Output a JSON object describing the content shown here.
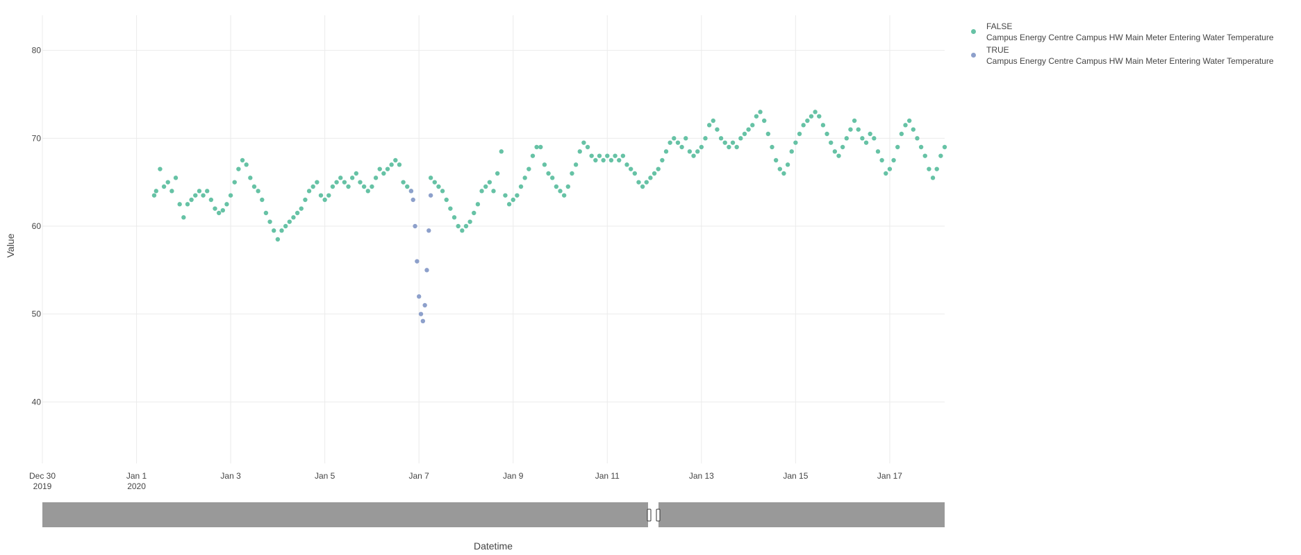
{
  "colors": {
    "false_series": "#66c2a5",
    "true_series": "#8da0cb",
    "grid": "#ebebeb",
    "rangeslider": "#999999",
    "text": "#444444"
  },
  "legend": {
    "items": [
      {
        "line1": "FALSE",
        "line2": "Campus Energy Centre Campus HW Main Meter Entering Water Temperature",
        "color": "#66c2a5"
      },
      {
        "line1": "TRUE",
        "line2": "Campus Energy Centre Campus HW Main Meter Entering Water Temperature",
        "color": "#8da0cb"
      }
    ]
  },
  "chart_data": {
    "type": "scatter",
    "xlabel": "Datetime",
    "ylabel": "Value",
    "xlim": [
      "2019-12-30",
      "2020-01-18 04:00"
    ],
    "ylim": [
      33,
      84
    ],
    "y_ticks": [
      40,
      50,
      60,
      70,
      80
    ],
    "x_ticks": [
      {
        "date": "2019-12-30",
        "label1": "Dec 30",
        "label2": "2019"
      },
      {
        "date": "2020-01-01",
        "label1": "Jan 1",
        "label2": "2020"
      },
      {
        "date": "2020-01-03",
        "label1": "Jan 3",
        "label2": ""
      },
      {
        "date": "2020-01-05",
        "label1": "Jan 5",
        "label2": ""
      },
      {
        "date": "2020-01-07",
        "label1": "Jan 7",
        "label2": ""
      },
      {
        "date": "2020-01-09",
        "label1": "Jan 9",
        "label2": ""
      },
      {
        "date": "2020-01-11",
        "label1": "Jan 11",
        "label2": ""
      },
      {
        "date": "2020-01-13",
        "label1": "Jan 13",
        "label2": ""
      },
      {
        "date": "2020-01-15",
        "label1": "Jan 15",
        "label2": ""
      },
      {
        "date": "2020-01-17",
        "label1": "Jan 17",
        "label2": ""
      }
    ],
    "grid": true,
    "legend_position": "top-right",
    "rangeslider": true,
    "series": [
      {
        "name": "FALSE\nCampus Energy Centre Campus HW Main Meter Entering Water Temperature",
        "color": "#66c2a5",
        "points": [
          [
            "2020-01-01 09:00",
            63.5
          ],
          [
            "2020-01-01 10:00",
            64.0
          ],
          [
            "2020-01-01 12:00",
            66.5
          ],
          [
            "2020-01-01 14:00",
            64.5
          ],
          [
            "2020-01-01 16:00",
            65.0
          ],
          [
            "2020-01-01 18:00",
            64.0
          ],
          [
            "2020-01-01 20:00",
            65.5
          ],
          [
            "2020-01-01 22:00",
            62.5
          ],
          [
            "2020-01-02 00:00",
            61.0
          ],
          [
            "2020-01-02 02:00",
            62.5
          ],
          [
            "2020-01-02 04:00",
            63.0
          ],
          [
            "2020-01-02 06:00",
            63.5
          ],
          [
            "2020-01-02 08:00",
            64.0
          ],
          [
            "2020-01-02 10:00",
            63.5
          ],
          [
            "2020-01-02 12:00",
            64.0
          ],
          [
            "2020-01-02 14:00",
            63.0
          ],
          [
            "2020-01-02 16:00",
            62.0
          ],
          [
            "2020-01-02 18:00",
            61.5
          ],
          [
            "2020-01-02 20:00",
            61.8
          ],
          [
            "2020-01-02 22:00",
            62.5
          ],
          [
            "2020-01-03 00:00",
            63.5
          ],
          [
            "2020-01-03 02:00",
            65.0
          ],
          [
            "2020-01-03 04:00",
            66.5
          ],
          [
            "2020-01-03 06:00",
            67.5
          ],
          [
            "2020-01-03 08:00",
            67.0
          ],
          [
            "2020-01-03 10:00",
            65.5
          ],
          [
            "2020-01-03 12:00",
            64.5
          ],
          [
            "2020-01-03 14:00",
            64.0
          ],
          [
            "2020-01-03 16:00",
            63.0
          ],
          [
            "2020-01-03 18:00",
            61.5
          ],
          [
            "2020-01-03 20:00",
            60.5
          ],
          [
            "2020-01-03 22:00",
            59.5
          ],
          [
            "2020-01-04 00:00",
            58.5
          ],
          [
            "2020-01-04 02:00",
            59.5
          ],
          [
            "2020-01-04 04:00",
            60.0
          ],
          [
            "2020-01-04 06:00",
            60.5
          ],
          [
            "2020-01-04 08:00",
            61.0
          ],
          [
            "2020-01-04 10:00",
            61.5
          ],
          [
            "2020-01-04 12:00",
            62.0
          ],
          [
            "2020-01-04 14:00",
            63.0
          ],
          [
            "2020-01-04 16:00",
            64.0
          ],
          [
            "2020-01-04 18:00",
            64.5
          ],
          [
            "2020-01-04 20:00",
            65.0
          ],
          [
            "2020-01-04 22:00",
            63.5
          ],
          [
            "2020-01-05 00:00",
            63.0
          ],
          [
            "2020-01-05 02:00",
            63.5
          ],
          [
            "2020-01-05 04:00",
            64.5
          ],
          [
            "2020-01-05 06:00",
            65.0
          ],
          [
            "2020-01-05 08:00",
            65.5
          ],
          [
            "2020-01-05 10:00",
            65.0
          ],
          [
            "2020-01-05 12:00",
            64.5
          ],
          [
            "2020-01-05 14:00",
            65.5
          ],
          [
            "2020-01-05 16:00",
            66.0
          ],
          [
            "2020-01-05 18:00",
            65.0
          ],
          [
            "2020-01-05 20:00",
            64.5
          ],
          [
            "2020-01-05 22:00",
            64.0
          ],
          [
            "2020-01-06 00:00",
            64.5
          ],
          [
            "2020-01-06 02:00",
            65.5
          ],
          [
            "2020-01-06 04:00",
            66.5
          ],
          [
            "2020-01-06 06:00",
            66.0
          ],
          [
            "2020-01-06 08:00",
            66.5
          ],
          [
            "2020-01-06 10:00",
            67.0
          ],
          [
            "2020-01-06 12:00",
            67.5
          ],
          [
            "2020-01-06 14:00",
            67.0
          ],
          [
            "2020-01-06 16:00",
            65.0
          ],
          [
            "2020-01-06 18:00",
            64.5
          ],
          [
            "2020-01-06 20:00",
            64.0
          ],
          [
            "2020-01-07 06:00",
            65.5
          ],
          [
            "2020-01-07 08:00",
            65.0
          ],
          [
            "2020-01-07 10:00",
            64.5
          ],
          [
            "2020-01-07 12:00",
            64.0
          ],
          [
            "2020-01-07 14:00",
            63.0
          ],
          [
            "2020-01-07 16:00",
            62.0
          ],
          [
            "2020-01-07 18:00",
            61.0
          ],
          [
            "2020-01-07 20:00",
            60.0
          ],
          [
            "2020-01-07 22:00",
            59.5
          ],
          [
            "2020-01-08 00:00",
            60.0
          ],
          [
            "2020-01-08 02:00",
            60.5
          ],
          [
            "2020-01-08 04:00",
            61.5
          ],
          [
            "2020-01-08 06:00",
            62.5
          ],
          [
            "2020-01-08 08:00",
            64.0
          ],
          [
            "2020-01-08 10:00",
            64.5
          ],
          [
            "2020-01-08 12:00",
            65.0
          ],
          [
            "2020-01-08 14:00",
            64.0
          ],
          [
            "2020-01-08 16:00",
            66.0
          ],
          [
            "2020-01-08 18:00",
            68.5
          ],
          [
            "2020-01-08 20:00",
            63.5
          ],
          [
            "2020-01-08 22:00",
            62.5
          ],
          [
            "2020-01-09 00:00",
            63.0
          ],
          [
            "2020-01-09 02:00",
            63.5
          ],
          [
            "2020-01-09 04:00",
            64.5
          ],
          [
            "2020-01-09 06:00",
            65.5
          ],
          [
            "2020-01-09 08:00",
            66.5
          ],
          [
            "2020-01-09 10:00",
            68.0
          ],
          [
            "2020-01-09 12:00",
            69.0
          ],
          [
            "2020-01-09 14:00",
            69.0
          ],
          [
            "2020-01-09 16:00",
            67.0
          ],
          [
            "2020-01-09 18:00",
            66.0
          ],
          [
            "2020-01-09 20:00",
            65.5
          ],
          [
            "2020-01-09 22:00",
            64.5
          ],
          [
            "2020-01-10 00:00",
            64.0
          ],
          [
            "2020-01-10 02:00",
            63.5
          ],
          [
            "2020-01-10 04:00",
            64.5
          ],
          [
            "2020-01-10 06:00",
            66.0
          ],
          [
            "2020-01-10 08:00",
            67.0
          ],
          [
            "2020-01-10 10:00",
            68.5
          ],
          [
            "2020-01-10 12:00",
            69.5
          ],
          [
            "2020-01-10 14:00",
            69.0
          ],
          [
            "2020-01-10 16:00",
            68.0
          ],
          [
            "2020-01-10 18:00",
            67.5
          ],
          [
            "2020-01-10 20:00",
            68.0
          ],
          [
            "2020-01-10 22:00",
            67.5
          ],
          [
            "2020-01-11 00:00",
            68.0
          ],
          [
            "2020-01-11 02:00",
            67.5
          ],
          [
            "2020-01-11 04:00",
            68.0
          ],
          [
            "2020-01-11 06:00",
            67.5
          ],
          [
            "2020-01-11 08:00",
            68.0
          ],
          [
            "2020-01-11 10:00",
            67.0
          ],
          [
            "2020-01-11 12:00",
            66.5
          ],
          [
            "2020-01-11 14:00",
            66.0
          ],
          [
            "2020-01-11 16:00",
            65.0
          ],
          [
            "2020-01-11 18:00",
            64.5
          ],
          [
            "2020-01-11 20:00",
            65.0
          ],
          [
            "2020-01-11 22:00",
            65.5
          ],
          [
            "2020-01-12 00:00",
            66.0
          ],
          [
            "2020-01-12 02:00",
            66.5
          ],
          [
            "2020-01-12 04:00",
            67.5
          ],
          [
            "2020-01-12 06:00",
            68.5
          ],
          [
            "2020-01-12 08:00",
            69.5
          ],
          [
            "2020-01-12 10:00",
            70.0
          ],
          [
            "2020-01-12 12:00",
            69.5
          ],
          [
            "2020-01-12 14:00",
            69.0
          ],
          [
            "2020-01-12 16:00",
            70.0
          ],
          [
            "2020-01-12 18:00",
            68.5
          ],
          [
            "2020-01-12 20:00",
            68.0
          ],
          [
            "2020-01-12 22:00",
            68.5
          ],
          [
            "2020-01-13 00:00",
            69.0
          ],
          [
            "2020-01-13 02:00",
            70.0
          ],
          [
            "2020-01-13 04:00",
            71.5
          ],
          [
            "2020-01-13 06:00",
            72.0
          ],
          [
            "2020-01-13 08:00",
            71.0
          ],
          [
            "2020-01-13 10:00",
            70.0
          ],
          [
            "2020-01-13 12:00",
            69.5
          ],
          [
            "2020-01-13 14:00",
            69.0
          ],
          [
            "2020-01-13 16:00",
            69.5
          ],
          [
            "2020-01-13 18:00",
            69.0
          ],
          [
            "2020-01-13 20:00",
            70.0
          ],
          [
            "2020-01-13 22:00",
            70.5
          ],
          [
            "2020-01-14 00:00",
            71.0
          ],
          [
            "2020-01-14 02:00",
            71.5
          ],
          [
            "2020-01-14 04:00",
            72.5
          ],
          [
            "2020-01-14 06:00",
            73.0
          ],
          [
            "2020-01-14 08:00",
            72.0
          ],
          [
            "2020-01-14 10:00",
            70.5
          ],
          [
            "2020-01-14 12:00",
            69.0
          ],
          [
            "2020-01-14 14:00",
            67.5
          ],
          [
            "2020-01-14 16:00",
            66.5
          ],
          [
            "2020-01-14 18:00",
            66.0
          ],
          [
            "2020-01-14 20:00",
            67.0
          ],
          [
            "2020-01-14 22:00",
            68.5
          ],
          [
            "2020-01-15 00:00",
            69.5
          ],
          [
            "2020-01-15 02:00",
            70.5
          ],
          [
            "2020-01-15 04:00",
            71.5
          ],
          [
            "2020-01-15 06:00",
            72.0
          ],
          [
            "2020-01-15 08:00",
            72.5
          ],
          [
            "2020-01-15 10:00",
            73.0
          ],
          [
            "2020-01-15 12:00",
            72.5
          ],
          [
            "2020-01-15 14:00",
            71.5
          ],
          [
            "2020-01-15 16:00",
            70.5
          ],
          [
            "2020-01-15 18:00",
            69.5
          ],
          [
            "2020-01-15 20:00",
            68.5
          ],
          [
            "2020-01-15 22:00",
            68.0
          ],
          [
            "2020-01-16 00:00",
            69.0
          ],
          [
            "2020-01-16 02:00",
            70.0
          ],
          [
            "2020-01-16 04:00",
            71.0
          ],
          [
            "2020-01-16 06:00",
            72.0
          ],
          [
            "2020-01-16 08:00",
            71.0
          ],
          [
            "2020-01-16 10:00",
            70.0
          ],
          [
            "2020-01-16 12:00",
            69.5
          ],
          [
            "2020-01-16 14:00",
            70.5
          ],
          [
            "2020-01-16 16:00",
            70.0
          ],
          [
            "2020-01-16 18:00",
            68.5
          ],
          [
            "2020-01-16 20:00",
            67.5
          ],
          [
            "2020-01-16 22:00",
            66.0
          ],
          [
            "2020-01-17 00:00",
            66.5
          ],
          [
            "2020-01-17 02:00",
            67.5
          ],
          [
            "2020-01-17 04:00",
            69.0
          ],
          [
            "2020-01-17 06:00",
            70.5
          ],
          [
            "2020-01-17 08:00",
            71.5
          ],
          [
            "2020-01-17 10:00",
            72.0
          ],
          [
            "2020-01-17 12:00",
            71.0
          ],
          [
            "2020-01-17 14:00",
            70.0
          ],
          [
            "2020-01-17 16:00",
            69.0
          ],
          [
            "2020-01-17 18:00",
            68.0
          ],
          [
            "2020-01-17 20:00",
            66.5
          ],
          [
            "2020-01-17 22:00",
            65.5
          ],
          [
            "2020-01-18 00:00",
            66.5
          ],
          [
            "2020-01-18 02:00",
            68.0
          ],
          [
            "2020-01-18 04:00",
            69.0
          ]
        ]
      },
      {
        "name": "TRUE\nCampus Energy Centre Campus HW Main Meter Entering Water Temperature",
        "color": "#8da0cb",
        "points": [
          [
            "2020-01-06 20:00",
            64.0
          ],
          [
            "2020-01-06 21:00",
            63.0
          ],
          [
            "2020-01-06 22:00",
            60.0
          ],
          [
            "2020-01-06 23:00",
            56.0
          ],
          [
            "2020-01-07 00:00",
            52.0
          ],
          [
            "2020-01-07 01:00",
            50.0
          ],
          [
            "2020-01-07 02:00",
            49.2
          ],
          [
            "2020-01-07 03:00",
            51.0
          ],
          [
            "2020-01-07 04:00",
            55.0
          ],
          [
            "2020-01-07 05:00",
            59.5
          ],
          [
            "2020-01-07 06:00",
            63.5
          ]
        ]
      }
    ]
  }
}
